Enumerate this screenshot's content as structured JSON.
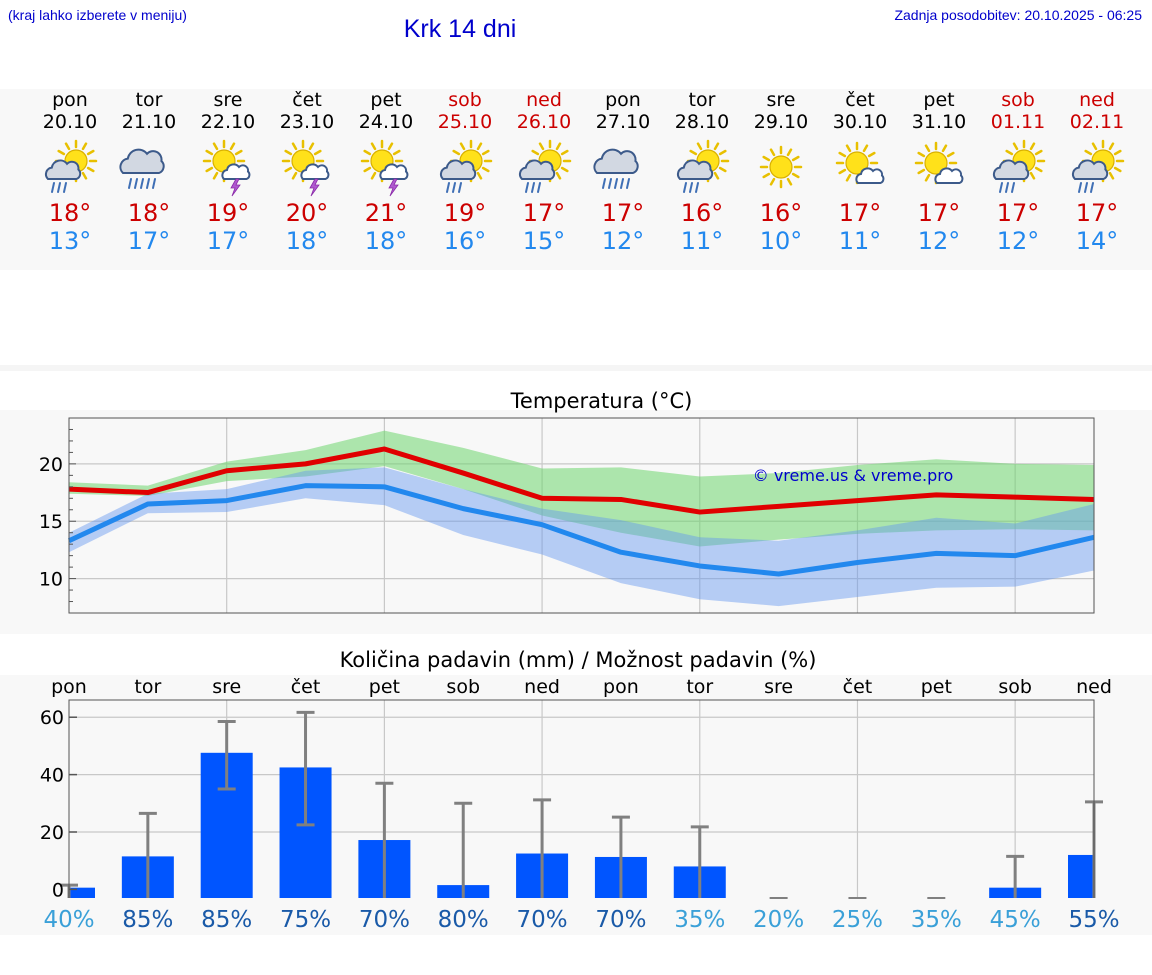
{
  "header": {
    "hint": "(kraj lahko izberete v meniju)",
    "title": "Krk 14 dni",
    "updated": "Zadnja posodobitev: 20.10.2025 - 06:25"
  },
  "colors": {
    "max": "#e00000",
    "min": "#2288ee",
    "bar": "#0055ff",
    "weekend": "#cc0000",
    "link": "#0000cc"
  },
  "days": [
    {
      "name": "pon",
      "date": "20.10",
      "weekend": false,
      "icon": "sun-cloud-rain-icon",
      "max": "18°",
      "min": "13°"
    },
    {
      "name": "tor",
      "date": "21.10",
      "weekend": false,
      "icon": "cloud-heavy-rain-icon",
      "max": "18°",
      "min": "17°"
    },
    {
      "name": "sre",
      "date": "22.10",
      "weekend": false,
      "icon": "sun-thunder-icon",
      "max": "19°",
      "min": "17°"
    },
    {
      "name": "čet",
      "date": "23.10",
      "weekend": false,
      "icon": "sun-thunder-icon",
      "max": "20°",
      "min": "18°"
    },
    {
      "name": "pet",
      "date": "24.10",
      "weekend": false,
      "icon": "sun-thunder-icon",
      "max": "21°",
      "min": "18°"
    },
    {
      "name": "sob",
      "date": "25.10",
      "weekend": true,
      "icon": "sun-cloud-rain-icon",
      "max": "19°",
      "min": "16°"
    },
    {
      "name": "ned",
      "date": "26.10",
      "weekend": true,
      "icon": "sun-cloud-rain-icon",
      "max": "17°",
      "min": "15°"
    },
    {
      "name": "pon",
      "date": "27.10",
      "weekend": false,
      "icon": "cloud-heavy-rain-icon",
      "max": "17°",
      "min": "12°"
    },
    {
      "name": "tor",
      "date": "28.10",
      "weekend": false,
      "icon": "sun-cloud-rain-icon",
      "max": "16°",
      "min": "11°"
    },
    {
      "name": "sre",
      "date": "29.10",
      "weekend": false,
      "icon": "sun-icon",
      "max": "16°",
      "min": "10°"
    },
    {
      "name": "čet",
      "date": "30.10",
      "weekend": false,
      "icon": "sun-cloud-icon",
      "max": "17°",
      "min": "11°"
    },
    {
      "name": "pet",
      "date": "31.10",
      "weekend": false,
      "icon": "sun-cloud-icon",
      "max": "17°",
      "min": "12°"
    },
    {
      "name": "sob",
      "date": "01.11",
      "weekend": true,
      "icon": "sun-cloud-rain-icon",
      "max": "17°",
      "min": "12°"
    },
    {
      "name": "ned",
      "date": "02.11",
      "weekend": true,
      "icon": "sun-cloud-rain-icon",
      "max": "17°",
      "min": "14°"
    }
  ],
  "chart_data": [
    {
      "type": "line",
      "title": "Temperatura (°C)",
      "watermark": "© vreme.us & vreme.pro",
      "ylim": [
        7,
        24
      ],
      "yticks": [
        10,
        15,
        20
      ],
      "x": [
        0,
        1,
        2,
        3,
        4,
        5,
        6,
        7,
        8,
        9,
        10,
        11,
        12,
        13
      ],
      "series": [
        {
          "role": "max",
          "values": [
            17.8,
            17.5,
            19.4,
            20.0,
            21.3,
            19.2,
            17.0,
            16.9,
            15.8,
            16.3,
            16.8,
            17.3,
            17.1,
            16.9
          ]
        },
        {
          "role": "max-band-high",
          "values": [
            18.4,
            18.1,
            20.2,
            21.2,
            22.9,
            21.4,
            19.6,
            19.7,
            18.9,
            19.2,
            19.9,
            20.4,
            20.0,
            19.9
          ]
        },
        {
          "role": "max-band-low",
          "values": [
            17.4,
            17.2,
            18.5,
            18.9,
            19.8,
            17.8,
            15.5,
            14.0,
            12.8,
            13.4,
            13.9,
            14.2,
            14.3,
            14.2
          ]
        },
        {
          "role": "min",
          "values": [
            13.3,
            16.5,
            16.8,
            18.1,
            18.0,
            16.1,
            14.7,
            12.3,
            11.1,
            10.4,
            11.4,
            12.2,
            12.0,
            13.6
          ]
        },
        {
          "role": "min-band-high",
          "values": [
            14.0,
            17.4,
            17.8,
            19.4,
            19.7,
            17.8,
            16.1,
            15.1,
            13.6,
            13.3,
            14.2,
            15.3,
            14.8,
            16.5
          ]
        },
        {
          "role": "min-band-low",
          "values": [
            12.3,
            15.7,
            15.8,
            17.0,
            16.4,
            13.8,
            12.1,
            9.6,
            8.2,
            7.6,
            8.4,
            9.2,
            9.3,
            10.7
          ]
        }
      ]
    },
    {
      "type": "bar",
      "title": "Količina padavin (mm) / Možnost padavin (%)",
      "ylim": [
        -3,
        66
      ],
      "yticks": [
        0,
        20,
        40,
        60
      ],
      "categories": [
        "pon",
        "tor",
        "sre",
        "čet",
        "pet",
        "sob",
        "ned",
        "pon",
        "tor",
        "sre",
        "čet",
        "pet",
        "sob",
        "ned"
      ],
      "values": [
        0.6,
        11.5,
        47.6,
        42.5,
        17.2,
        1.5,
        12.5,
        11.3,
        8.0,
        0,
        0,
        0,
        0.6,
        12.0
      ],
      "error_high": [
        1.5,
        26.5,
        58.5,
        61.7,
        37.0,
        30.0,
        31.2,
        25.2,
        21.8,
        0,
        0,
        0,
        11.5,
        30.5
      ],
      "error_low": [
        0,
        0,
        35.0,
        22.5,
        0,
        0,
        0,
        0,
        0,
        0,
        0,
        0,
        0,
        0
      ],
      "chance": [
        "40%",
        "85%",
        "85%",
        "75%",
        "70%",
        "80%",
        "70%",
        "70%",
        "35%",
        "20%",
        "25%",
        "35%",
        "45%",
        "55%"
      ]
    }
  ]
}
